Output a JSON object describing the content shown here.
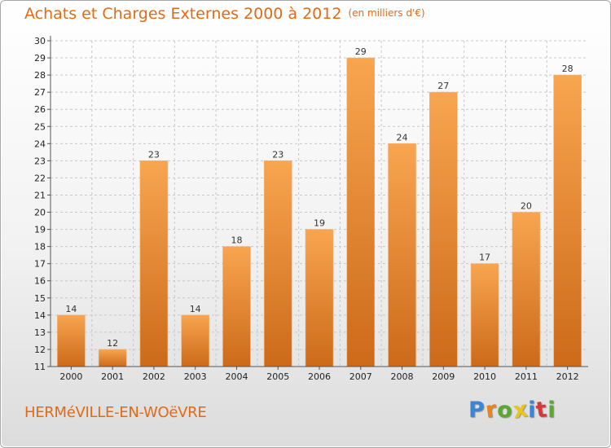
{
  "colors": {
    "accent": "#e36a14",
    "bar_top": "#f8a550",
    "bar_bottom": "#cc6a1a",
    "grid": "#c8c8c8",
    "axis": "#555555"
  },
  "footer": {
    "commune": "HERMéVILLE-EN-WOëVRE",
    "brand_letters": [
      {
        "char": "P",
        "color": "#3a86d4"
      },
      {
        "char": "r",
        "color": "#e8851c"
      },
      {
        "char": "o",
        "color": "#5aa832"
      },
      {
        "char": "x",
        "color": "#e8c61c"
      },
      {
        "char": "i",
        "color": "#3a86d4"
      },
      {
        "char": "t",
        "color": "#d43a3a"
      },
      {
        "char": "i",
        "color": "#5aa832"
      }
    ]
  },
  "chart_data": {
    "type": "bar",
    "title": "Achats et Charges Externes 2000 à 2012",
    "subtitle": "(en milliers d'€)",
    "categories": [
      "2000",
      "2001",
      "2002",
      "2003",
      "2004",
      "2005",
      "2006",
      "2007",
      "2008",
      "2009",
      "2010",
      "2011",
      "2012"
    ],
    "values": [
      14,
      12,
      23,
      14,
      18,
      23,
      19,
      29,
      24,
      27,
      17,
      20,
      28
    ],
    "ylim": [
      11,
      30
    ],
    "yticks": [
      11,
      12,
      13,
      14,
      15,
      16,
      17,
      18,
      19,
      20,
      21,
      22,
      23,
      24,
      25,
      26,
      27,
      28,
      29,
      30
    ],
    "grid": true,
    "legend": "none"
  }
}
